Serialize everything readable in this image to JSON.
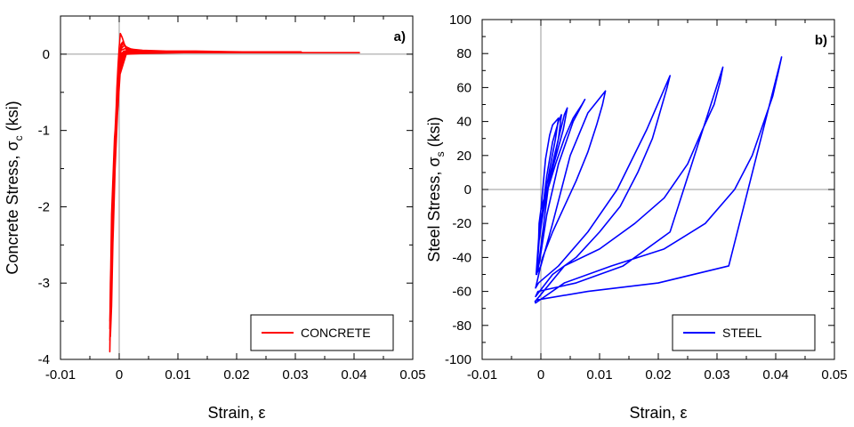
{
  "chart_data": [
    {
      "type": "line",
      "panel_label": "a)",
      "xlabel": "Strain, ε",
      "ylabel_main": "Concrete Stress, σ",
      "ylabel_sub": "c",
      "ylabel_tail": " (ksi)",
      "xlim": [
        -0.01,
        0.05
      ],
      "ylim": [
        -4,
        0.5
      ],
      "xticks": [
        -0.01,
        0,
        0.01,
        0.02,
        0.03,
        0.04,
        0.05
      ],
      "xtick_labels": [
        "-0.01",
        "0",
        "0.01",
        "0.02",
        "0.03",
        "0.04",
        "0.05"
      ],
      "yticks": [
        -4,
        -3,
        -2,
        -1,
        0
      ],
      "ytick_labels": [
        "-4",
        "-3",
        "-2",
        "-1",
        "0"
      ],
      "zero_lines": true,
      "legend": {
        "position": "bottom-right"
      },
      "series": [
        {
          "name": "CONCRETE",
          "color": "#ff0000",
          "x": [
            0,
            0.0003,
            0.0008,
            0.002,
            0.0008,
            0.0003,
            -0.0001,
            -0.0003,
            -0.0005,
            -0.0008,
            -0.0011,
            -0.0013,
            -0.0014,
            -0.0012,
            -0.0009,
            -0.0006,
            -0.0004,
            -0.0002,
            0,
            0.0002,
            0.0005,
            0.0012,
            0.0022,
            0.003,
            0.0022,
            0.0012,
            0.0005,
            0.0001,
            -0.0003,
            -0.0007,
            -0.001,
            -0.0013,
            -0.0015,
            -0.0013,
            -0.001,
            -0.0006,
            -0.0003,
            0,
            0.0003,
            0.0006,
            0.0015,
            0.003,
            0.0055,
            0.0065,
            0.004,
            0.0018,
            0.0008,
            0.0002,
            -0.0003,
            -0.0008,
            -0.0012,
            -0.0015,
            -0.0016,
            -0.0014,
            -0.0011,
            -0.0007,
            -0.0003,
            0.0001,
            0.0006,
            0.0015,
            0.004,
            0.008,
            0.011,
            0.0085,
            0.005,
            0.002,
            0.0007,
            0,
            -0.0006,
            -0.0011,
            -0.0014,
            -0.0016,
            -0.0013,
            -0.0009,
            -0.0004,
            0.0001,
            0.0008,
            0.0025,
            0.007,
            0.013,
            0.021,
            0.016,
            0.008,
            0.003,
            0.001,
            0,
            -0.0007,
            -0.0012,
            -0.0015,
            -0.0016,
            -0.0013,
            -0.0008,
            -0.0003,
            0.0003,
            0.0012,
            0.004,
            0.012,
            0.022,
            0.031,
            0.023,
            0.011,
            0.004,
            0.0012,
            0,
            -0.0008,
            -0.0013,
            -0.0015,
            -0.0016,
            -0.0012,
            -0.0006,
            0,
            0.0008,
            0.003,
            0.01,
            0.022,
            0.032,
            0.041
          ],
          "y": [
            0,
            -0.05,
            0.04,
            0.05,
            0.04,
            0,
            -0.3,
            -0.6,
            -1,
            -1.5,
            -2.2,
            -2.9,
            -3.2,
            -2.5,
            -1.6,
            -0.9,
            -0.45,
            -0.15,
            0.1,
            0.27,
            0.22,
            0.06,
            0.04,
            0.04,
            0.03,
            0.03,
            0,
            -0.3,
            -0.8,
            -1.5,
            -2.3,
            -3,
            -3.7,
            -3.3,
            -2.2,
            -1.2,
            -0.5,
            -0.1,
            0.13,
            0.16,
            0.06,
            0.05,
            0.04,
            0.04,
            0.03,
            0.03,
            0,
            -0.2,
            -0.8,
            -1.6,
            -2.5,
            -3.3,
            -3.75,
            -3.1,
            -2,
            -1,
            -0.35,
            0.05,
            0.14,
            0.07,
            0.05,
            0.04,
            0.04,
            0.03,
            0.02,
            0.02,
            0,
            -0.25,
            -0.9,
            -1.8,
            -2.8,
            -3.5,
            -2.8,
            -1.6,
            -0.6,
            0.05,
            0.11,
            0.05,
            0.04,
            0.04,
            0.03,
            0.03,
            0.02,
            0.02,
            0,
            -0.3,
            -1,
            -2,
            -3,
            -3.6,
            -2.6,
            -1.3,
            -0.4,
            0.05,
            0.08,
            0.04,
            0.03,
            0.03,
            0.03,
            0.02,
            0.02,
            0.01,
            0,
            -0.3,
            -1.1,
            -2.1,
            -3.1,
            -3.9,
            -2.4,
            -1,
            -0.2,
            0.04,
            0.03,
            0.02,
            0.02,
            0.02,
            0.02
          ]
        }
      ]
    },
    {
      "type": "line",
      "panel_label": "b)",
      "xlabel": "Strain, ε",
      "ylabel_main": "Steel Stress, σ",
      "ylabel_sub": "s",
      "ylabel_tail": " (ksi)",
      "xlim": [
        -0.01,
        0.05
      ],
      "ylim": [
        -100,
        100
      ],
      "xticks": [
        -0.01,
        0,
        0.01,
        0.02,
        0.03,
        0.04,
        0.05
      ],
      "xtick_labels": [
        "-0.01",
        "0",
        "0.01",
        "0.02",
        "0.03",
        "0.04",
        "0.05"
      ],
      "yticks": [
        -100,
        -80,
        -60,
        -40,
        -20,
        0,
        20,
        40,
        60,
        80,
        100
      ],
      "ytick_labels": [
        "-100",
        "-80",
        "-60",
        "-40",
        "-20",
        "0",
        "20",
        "40",
        "60",
        "80",
        "100"
      ],
      "zero_lines": true,
      "legend": {
        "position": "bottom-right"
      },
      "series": [
        {
          "name": "STEEL",
          "color": "#0000ff",
          "x": [
            0,
            0.0008,
            0.0015,
            0.002,
            0.0025,
            0.003,
            0.0025,
            0.0015,
            0.0008,
            0,
            -0.0003,
            -0.0004,
            0,
            0.001,
            0.002,
            0.003,
            0.0035,
            0.003,
            0.0018,
            0.0008,
            0,
            -0.0004,
            -0.0006,
            -0.0003,
            0.0005,
            0.0015,
            0.003,
            0.004,
            0.0045,
            0.0038,
            0.0022,
            0.001,
            0.0002,
            -0.0003,
            -0.0007,
            -0.0002,
            0.001,
            0.003,
            0.0055,
            0.0075,
            0.007,
            0.0055,
            0.004,
            0.0025,
            0.001,
            -0.0002,
            -0.0008,
            0,
            0.002,
            0.005,
            0.008,
            0.011,
            0.0105,
            0.0095,
            0.008,
            0.006,
            0.004,
            0.002,
            0.0003,
            -0.0009,
            -0.0004,
            0.003,
            0.008,
            0.013,
            0.018,
            0.022,
            0.0215,
            0.0205,
            0.019,
            0.0165,
            0.0135,
            0.01,
            0.006,
            0.002,
            -0.0009,
            -0.0005,
            0.006,
            0.014,
            0.022,
            0.031,
            0.0305,
            0.0295,
            0.0275,
            0.025,
            0.021,
            0.016,
            0.01,
            0.004,
            -0.001,
            -0.0007,
            0.008,
            0.02,
            0.032,
            0.041,
            0.0405,
            0.0395,
            0.038,
            0.036,
            0.033,
            0.028,
            0.021,
            0.012,
            0.004,
            -0.001
          ],
          "y": [
            -12,
            18,
            32,
            38,
            40,
            42,
            30,
            12,
            -2,
            -12,
            -20,
            -32,
            -20,
            8,
            28,
            40,
            44,
            30,
            10,
            -5,
            -20,
            -33,
            -45,
            -42,
            -20,
            8,
            30,
            44,
            48,
            35,
            15,
            -2,
            -18,
            -30,
            -50,
            -42,
            -15,
            15,
            40,
            53,
            50,
            42,
            30,
            15,
            -2,
            -20,
            -50,
            -45,
            -20,
            20,
            45,
            58,
            50,
            38,
            22,
            5,
            -10,
            -25,
            -40,
            -58,
            -55,
            -45,
            -25,
            0,
            35,
            67,
            60,
            48,
            30,
            10,
            -10,
            -25,
            -40,
            -50,
            -63,
            -60,
            -55,
            -45,
            -25,
            72,
            63,
            50,
            35,
            15,
            -5,
            -20,
            -35,
            -45,
            -66,
            -65,
            -60,
            -55,
            -45,
            78,
            70,
            55,
            40,
            20,
            0,
            -20,
            -35,
            -45,
            -55,
            -67
          ]
        }
      ]
    }
  ]
}
